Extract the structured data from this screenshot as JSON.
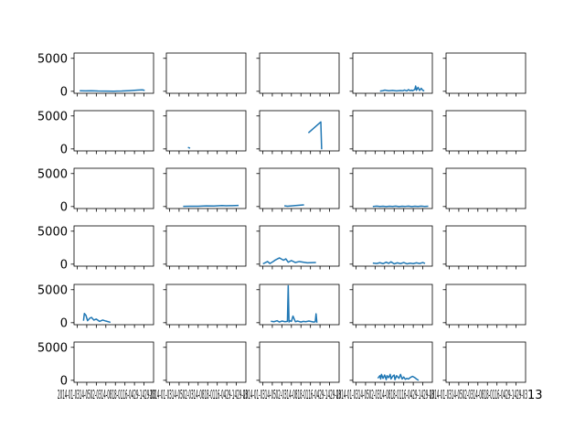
{
  "chart_data": {
    "type": "line",
    "layout": {
      "rows": 6,
      "cols": 5,
      "sharex": true,
      "sharey": true
    },
    "ylim": [
      -300,
      5800
    ],
    "yticks": [
      0,
      5000
    ],
    "ytick_labels": [
      "0",
      "5000"
    ],
    "xlim": [
      0,
      100
    ],
    "xticks": [
      4,
      16,
      28,
      40,
      52,
      64,
      76,
      88
    ],
    "xtick_labels_text": [
      "2014-01-0314-0502-0314-0818-0116-0429-1429-03",
      "2014-01-0314-0502-0314-0818-0116-0429-1429-03",
      "2014-01-0314-0502-0314-0818-0116-0429-1429-03",
      "2014-01-0314-0502-0314-0818-0116-0429-1429-03",
      "2014-01-0314-0502-0314-0818-0116-0429-1429-03"
    ],
    "xtick_label_tail": "13",
    "line_color": "#1f77b4",
    "panels": [
      {
        "row": 0,
        "col": 0,
        "x": [
          8,
          14,
          22,
          30,
          40,
          50,
          60,
          70,
          80,
          86,
          88
        ],
        "y": [
          80,
          60,
          90,
          50,
          30,
          20,
          40,
          100,
          180,
          220,
          160
        ]
      },
      {
        "row": 0,
        "col": 1,
        "x": [],
        "y": []
      },
      {
        "row": 0,
        "col": 2,
        "x": [],
        "y": []
      },
      {
        "row": 0,
        "col": 3,
        "x": [
          35,
          38,
          40,
          45,
          50,
          55,
          60,
          63,
          65,
          68,
          70,
          72,
          74,
          75,
          78,
          79,
          80,
          82,
          84,
          86,
          88,
          89
        ],
        "y": [
          50,
          100,
          180,
          80,
          140,
          60,
          120,
          90,
          200,
          60,
          260,
          100,
          180,
          80,
          280,
          800,
          150,
          600,
          120,
          450,
          150,
          100
        ]
      },
      {
        "row": 0,
        "col": 4,
        "x": [],
        "y": []
      },
      {
        "row": 1,
        "col": 0,
        "x": [],
        "y": []
      },
      {
        "row": 1,
        "col": 1,
        "x": [
          28,
          29
        ],
        "y": [
          200,
          150
        ]
      },
      {
        "row": 1,
        "col": 2,
        "x": [
          62,
          77,
          78
        ],
        "y": [
          2500,
          4100,
          50
        ]
      },
      {
        "row": 1,
        "col": 3,
        "x": [],
        "y": []
      },
      {
        "row": 1,
        "col": 4,
        "x": [],
        "y": []
      },
      {
        "row": 2,
        "col": 0,
        "x": [],
        "y": []
      },
      {
        "row": 2,
        "col": 1,
        "x": [
          22,
          30,
          40,
          50,
          60,
          70,
          75,
          80,
          90
        ],
        "y": [
          30,
          50,
          40,
          100,
          80,
          150,
          120,
          130,
          160
        ]
      },
      {
        "row": 2,
        "col": 2,
        "x": [
          32,
          35,
          45,
          55
        ],
        "y": [
          100,
          50,
          150,
          250
        ]
      },
      {
        "row": 2,
        "col": 3,
        "x": [
          26,
          30,
          34,
          38,
          42,
          46,
          50,
          54,
          58,
          62,
          66,
          70,
          74,
          78,
          82,
          86,
          90,
          94
        ],
        "y": [
          20,
          60,
          10,
          50,
          0,
          40,
          10,
          70,
          0,
          50,
          20,
          60,
          0,
          40,
          10,
          60,
          20,
          40
        ]
      },
      {
        "row": 2,
        "col": 4,
        "x": [],
        "y": []
      },
      {
        "row": 3,
        "col": 0,
        "x": [],
        "y": []
      },
      {
        "row": 3,
        "col": 1,
        "x": [],
        "y": []
      },
      {
        "row": 3,
        "col": 2,
        "x": [
          5,
          10,
          13,
          17,
          20,
          25,
          30,
          33,
          36,
          40,
          45,
          50,
          60,
          70
        ],
        "y": [
          100,
          400,
          100,
          400,
          650,
          950,
          600,
          800,
          300,
          550,
          250,
          400,
          200,
          250
        ]
      },
      {
        "row": 3,
        "col": 3,
        "x": [
          26,
          30,
          34,
          38,
          42,
          45,
          48,
          52,
          56,
          60,
          64,
          68,
          72,
          76,
          80,
          84,
          88,
          90
        ],
        "y": [
          150,
          100,
          220,
          80,
          300,
          120,
          350,
          50,
          200,
          80,
          250,
          50,
          150,
          80,
          200,
          100,
          250,
          150
        ]
      },
      {
        "row": 3,
        "col": 4,
        "x": [],
        "y": []
      },
      {
        "row": 4,
        "col": 0,
        "x": [
          12,
          13,
          15,
          17,
          20,
          22,
          25,
          28,
          32,
          36,
          40,
          45
        ],
        "y": [
          400,
          1400,
          1100,
          300,
          700,
          800,
          400,
          550,
          200,
          400,
          250,
          80
        ]
      },
      {
        "row": 4,
        "col": 1,
        "x": [],
        "y": []
      },
      {
        "row": 4,
        "col": 2,
        "x": [
          15,
          18,
          22,
          25,
          28,
          32,
          35,
          36,
          37,
          38,
          40,
          42,
          45,
          48,
          52,
          55,
          58,
          62,
          68,
          70,
          71,
          72
        ],
        "y": [
          200,
          150,
          300,
          100,
          250,
          150,
          200,
          5600,
          100,
          300,
          200,
          1000,
          150,
          250,
          100,
          200,
          150,
          250,
          100,
          150,
          1350,
          100
        ]
      },
      {
        "row": 4,
        "col": 3,
        "x": [],
        "y": []
      },
      {
        "row": 4,
        "col": 4,
        "x": [],
        "y": []
      },
      {
        "row": 5,
        "col": 0,
        "x": [],
        "y": []
      },
      {
        "row": 5,
        "col": 1,
        "x": [],
        "y": []
      },
      {
        "row": 5,
        "col": 2,
        "x": [],
        "y": []
      },
      {
        "row": 5,
        "col": 3,
        "x": [
          32,
          34,
          35,
          36,
          38,
          40,
          42,
          43,
          45,
          47,
          48,
          50,
          52,
          53,
          55,
          58,
          60,
          62,
          64,
          66,
          68,
          70,
          72,
          75,
          78,
          80,
          82
        ],
        "y": [
          400,
          700,
          200,
          900,
          300,
          800,
          100,
          700,
          400,
          900,
          200,
          600,
          800,
          100,
          700,
          300,
          900,
          200,
          500,
          150,
          300,
          200,
          400,
          600,
          400,
          200,
          50
        ]
      },
      {
        "row": 5,
        "col": 4,
        "x": [],
        "y": []
      }
    ]
  }
}
